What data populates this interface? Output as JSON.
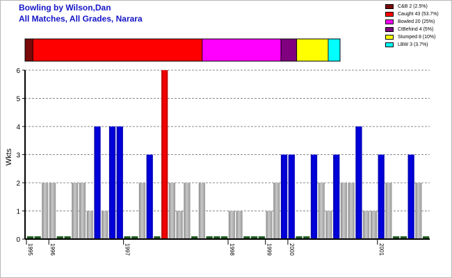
{
  "title_line1": "Bowling by Wilson,Dan",
  "title_line2": "All Matches, All Grades, Narara",
  "legend": [
    {
      "label": "C&B 2 (2.5%)",
      "color": "#7a0a0a",
      "share": 2
    },
    {
      "label": "Caught 43 (53.7%)",
      "color": "#ff0000",
      "share": 43
    },
    {
      "label": "Bowled 20 (25%)",
      "color": "#ff00ff",
      "share": 20
    },
    {
      "label": "CtBehind 4 (5%)",
      "color": "#800080",
      "share": 4
    },
    {
      "label": "Stumped 8 (10%)",
      "color": "#ffff00",
      "share": 8
    },
    {
      "label": "LBW 3 (3.7%)",
      "color": "#00ffff",
      "share": 3
    }
  ],
  "chart_data": {
    "type": "bar",
    "ylabel": "Wkts",
    "ylim": [
      0,
      6
    ],
    "yticks": [
      0,
      1,
      2,
      3,
      4,
      5,
      6
    ],
    "grid": true,
    "year_labels": [
      {
        "label": "1995",
        "index": 0
      },
      {
        "label": "1996",
        "index": 3
      },
      {
        "label": "1997",
        "index": 13
      },
      {
        "label": "1998",
        "index": 27
      },
      {
        "label": "1999",
        "index": 32
      },
      {
        "label": "2000",
        "index": 35
      },
      {
        "label": "2001",
        "index": 47
      }
    ],
    "bars": [
      {
        "v": 0,
        "c": "zero"
      },
      {
        "v": 0,
        "c": "zero"
      },
      {
        "v": 2,
        "c": "grey"
      },
      {
        "v": 2,
        "c": "grey"
      },
      {
        "v": 0,
        "c": "zero"
      },
      {
        "v": 0,
        "c": "zero"
      },
      {
        "v": 2,
        "c": "grey"
      },
      {
        "v": 2,
        "c": "grey"
      },
      {
        "v": 1,
        "c": "grey"
      },
      {
        "v": 4,
        "c": "blue"
      },
      {
        "v": 1,
        "c": "grey"
      },
      {
        "v": 4,
        "c": "blue"
      },
      {
        "v": 4,
        "c": "blue"
      },
      {
        "v": 0,
        "c": "zero"
      },
      {
        "v": 0,
        "c": "zero"
      },
      {
        "v": 2,
        "c": "grey"
      },
      {
        "v": 3,
        "c": "blue"
      },
      {
        "v": 0,
        "c": "zero"
      },
      {
        "v": 6,
        "c": "red"
      },
      {
        "v": 2,
        "c": "grey"
      },
      {
        "v": 1,
        "c": "grey"
      },
      {
        "v": 2,
        "c": "grey"
      },
      {
        "v": 0,
        "c": "zero"
      },
      {
        "v": 2,
        "c": "grey"
      },
      {
        "v": 0,
        "c": "zero"
      },
      {
        "v": 0,
        "c": "zero"
      },
      {
        "v": 0,
        "c": "zero"
      },
      {
        "v": 1,
        "c": "grey"
      },
      {
        "v": 1,
        "c": "grey"
      },
      {
        "v": 0,
        "c": "zero"
      },
      {
        "v": 0,
        "c": "zero"
      },
      {
        "v": 0,
        "c": "zero"
      },
      {
        "v": 1,
        "c": "grey"
      },
      {
        "v": 2,
        "c": "grey"
      },
      {
        "v": 3,
        "c": "blue"
      },
      {
        "v": 3,
        "c": "blue"
      },
      {
        "v": 0,
        "c": "zero"
      },
      {
        "v": 0,
        "c": "zero"
      },
      {
        "v": 3,
        "c": "blue"
      },
      {
        "v": 2,
        "c": "grey"
      },
      {
        "v": 1,
        "c": "grey"
      },
      {
        "v": 3,
        "c": "blue"
      },
      {
        "v": 2,
        "c": "grey"
      },
      {
        "v": 2,
        "c": "grey"
      },
      {
        "v": 4,
        "c": "blue"
      },
      {
        "v": 1,
        "c": "grey"
      },
      {
        "v": 1,
        "c": "grey"
      },
      {
        "v": 3,
        "c": "blue"
      },
      {
        "v": 2,
        "c": "grey"
      },
      {
        "v": 0,
        "c": "zero"
      },
      {
        "v": 0,
        "c": "zero"
      },
      {
        "v": 3,
        "c": "blue"
      },
      {
        "v": 2,
        "c": "grey"
      },
      {
        "v": 0,
        "c": "zero"
      }
    ]
  }
}
